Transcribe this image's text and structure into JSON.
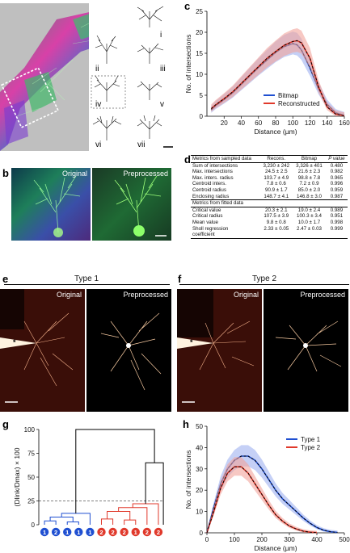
{
  "panels": {
    "a": "a",
    "b": "b",
    "c": "c",
    "d": "d",
    "e": "e",
    "f": "f",
    "g": "g",
    "h": "h"
  },
  "panel_a": {
    "roman": [
      "i",
      "ii",
      "iii",
      "iv",
      "v",
      "vi",
      "vii"
    ]
  },
  "panel_b": {
    "left": "Original",
    "right": "Preprocessed"
  },
  "panel_e": {
    "title": "Type 1",
    "left": "Original",
    "right": "Preprocessed",
    "star": "*"
  },
  "panel_f": {
    "title": "Type 2",
    "left": "Original",
    "right": "Preprocessed",
    "star": "*"
  },
  "table_d": {
    "sec1": "Metrics from sampled data",
    "col_recons": "Recons.",
    "col_bitmap": "Bitmap",
    "col_p": "P value",
    "rows1": [
      [
        "Sum of intersections",
        "3,230 ± 242",
        "3,326 ± 401",
        "0.480"
      ],
      [
        "Max. intersections",
        "24.5 ± 2.5",
        "21.6 ± 2.3",
        "0.982"
      ],
      [
        "Max. inters. radius",
        "103.7 ± 4.9",
        "98.8 ± 7.8",
        "0.965"
      ],
      [
        "Centroid inters.",
        "7.8 ± 0.6",
        "7.2 ± 0.9",
        "0.996"
      ],
      [
        "Centroid radius",
        "90.9 ± 1.7",
        "85.0 ± 2.0",
        "0.959"
      ],
      [
        "Enclosing radius",
        "148.7 ± 4.1",
        "146.8 ± 3.0",
        "0.987"
      ]
    ],
    "sec2": "Metrics from fitted data",
    "rows2": [
      [
        "Critical value",
        "20.3 ± 2.1",
        "19.0 ± 2.4",
        "0.989"
      ],
      [
        "Critical radius",
        "107.5 ± 3.9",
        "100.3 ± 3.4",
        "0.951"
      ],
      [
        "Mean value",
        "9.8 ± 0.8",
        "10.0 ± 1.7",
        "0.998"
      ],
      [
        "Sholl regression",
        "2.33 ± 0.05",
        "2.47 ± 0.03",
        "0.999"
      ]
    ],
    "coefficient": "coefficient"
  },
  "colors": {
    "blue": "#1f4fd1",
    "red": "#e0392b",
    "blue_band": "#9fb1f0",
    "red_band": "#f2a39b"
  },
  "chart_data": [
    {
      "id": "c",
      "type": "line",
      "xlabel": "Distance (µm)",
      "ylabel": "No. of intersections",
      "xlim": [
        0,
        160
      ],
      "ylim": [
        0,
        25
      ],
      "xticks": [
        "20",
        "40",
        "60",
        "80",
        "100",
        "120",
        "140",
        "160"
      ],
      "yticks": [
        "0",
        "5",
        "10",
        "15",
        "20",
        "25"
      ],
      "legend_position": "bottom-right",
      "series": [
        {
          "name": "Bitmap",
          "color": "#1f4fd1",
          "x": [
            5,
            10,
            20,
            30,
            40,
            50,
            60,
            70,
            80,
            90,
            100,
            105,
            110,
            120,
            130,
            140,
            150,
            160
          ],
          "y": [
            1.5,
            2.5,
            4.0,
            5.6,
            7.6,
            9.6,
            11.6,
            13.4,
            15.2,
            16.6,
            17.3,
            17.0,
            15.8,
            11.5,
            6.5,
            2.8,
            0.8,
            0.2
          ]
        },
        {
          "name": "Reconstructed",
          "color": "#e0392b",
          "x": [
            5,
            10,
            20,
            30,
            40,
            50,
            60,
            70,
            80,
            90,
            100,
            105,
            110,
            120,
            130,
            140,
            150,
            160
          ],
          "y": [
            1.8,
            2.7,
            4.2,
            5.8,
            7.8,
            9.8,
            11.8,
            13.8,
            15.4,
            16.9,
            17.8,
            18.0,
            17.5,
            13.8,
            7.0,
            2.2,
            0.5,
            0.1
          ]
        }
      ]
    },
    {
      "id": "g",
      "type": "dendrogram",
      "ylabel": "(Dlink/Dmax) × 100",
      "ylim": [
        0,
        100
      ],
      "yticks": [
        "0",
        "25",
        "50",
        "75",
        "100"
      ],
      "threshold": 25,
      "leaves": [
        "1",
        "2",
        "1",
        "1",
        "1",
        "2",
        "2",
        "2",
        "1",
        "2",
        "2"
      ],
      "leaf_colors": [
        "blue",
        "blue",
        "blue",
        "blue",
        "blue",
        "red",
        "red",
        "red",
        "red",
        "red",
        "red"
      ],
      "root_height": 100,
      "red_cluster_height": 65
    },
    {
      "id": "h",
      "type": "line",
      "xlabel": "Distance (µm)",
      "ylabel": "No. of intersections",
      "xlim": [
        0,
        500
      ],
      "ylim": [
        0,
        50
      ],
      "xticks": [
        "0",
        "100",
        "200",
        "300",
        "400",
        "500"
      ],
      "yticks": [
        "0",
        "10",
        "20",
        "30",
        "40",
        "50"
      ],
      "legend_position": "top-right",
      "series": [
        {
          "name": "Type 1",
          "color": "#1f4fd1",
          "x": [
            0,
            25,
            50,
            75,
            100,
            125,
            150,
            175,
            200,
            225,
            250,
            275,
            300,
            325,
            350,
            375,
            400,
            425,
            450,
            475
          ],
          "y": [
            0,
            12,
            23,
            30,
            34,
            36,
            36,
            34,
            30,
            25,
            20,
            16,
            13,
            10,
            7,
            4.5,
            2.5,
            1.2,
            0.5,
            0.2
          ]
        },
        {
          "name": "Type 2",
          "color": "#e0392b",
          "x": [
            0,
            25,
            50,
            75,
            100,
            125,
            150,
            175,
            200,
            225,
            250,
            275,
            300,
            325,
            350,
            375,
            400
          ],
          "y": [
            0,
            10,
            21,
            28,
            31,
            31,
            28,
            23,
            18,
            13,
            8.5,
            5.5,
            3.2,
            1.8,
            0.8,
            0.3,
            0.1
          ]
        }
      ]
    }
  ]
}
